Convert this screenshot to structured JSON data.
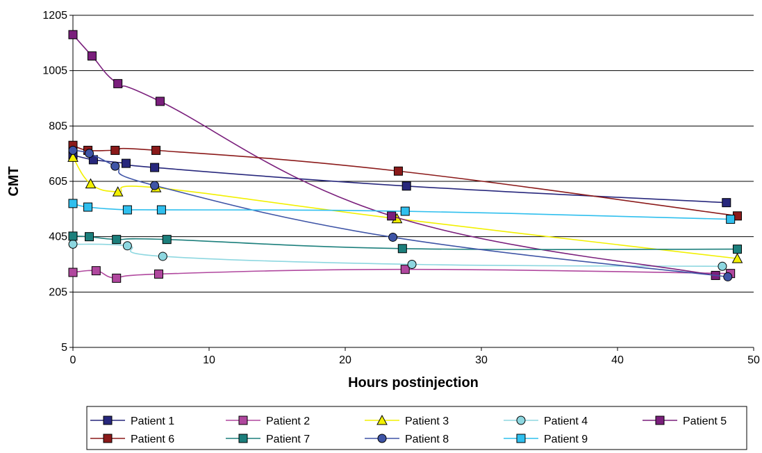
{
  "chart_data": {
    "type": "line",
    "title": "",
    "xlabel": "Hours postinjection",
    "ylabel": "CMT",
    "xlim": [
      0,
      50
    ],
    "ylim": [
      5,
      1205
    ],
    "xticks": [
      0,
      10,
      20,
      30,
      40,
      50
    ],
    "yticks": [
      5,
      205,
      405,
      605,
      805,
      1005,
      1205
    ],
    "grid": "horizontal",
    "legend_position": "bottom",
    "series": [
      {
        "name": "Patient 1",
        "color": "#27277c",
        "marker": "square",
        "x": [
          0,
          1.5,
          3.9,
          6,
          24.5,
          48
        ],
        "y": [
          700,
          683,
          670,
          655,
          588,
          528
        ]
      },
      {
        "name": "Patient 2",
        "color": "#b0479e",
        "marker": "square",
        "x": [
          0,
          1.7,
          3.2,
          6.3,
          24.4,
          48.3
        ],
        "y": [
          276,
          282,
          255,
          270,
          287,
          272
        ]
      },
      {
        "name": "Patient 3",
        "color": "#f2f000",
        "marker": "triangle",
        "x": [
          0,
          1.3,
          3.3,
          6.1,
          23.8,
          48.8
        ],
        "y": [
          692,
          596,
          567,
          582,
          470,
          326
        ]
      },
      {
        "name": "Patient 4",
        "color": "#8dd7e0",
        "marker": "circle",
        "x": [
          0,
          4,
          6.6,
          24.9,
          47.7
        ],
        "y": [
          378,
          372,
          334,
          305,
          298
        ]
      },
      {
        "name": "Patient 5",
        "color": "#7a1f7c",
        "marker": "square",
        "x": [
          0,
          1.4,
          3.3,
          6.4,
          23.4,
          47.2
        ],
        "y": [
          1135,
          1058,
          958,
          894,
          480,
          265
        ]
      },
      {
        "name": "Patient 6",
        "color": "#8b1a1a",
        "marker": "square",
        "x": [
          0,
          1.1,
          3.1,
          6.1,
          23.9,
          48.8
        ],
        "y": [
          735,
          717,
          717,
          717,
          642,
          480
        ]
      },
      {
        "name": "Patient 7",
        "color": "#1c7f7c",
        "marker": "square",
        "x": [
          0,
          1.2,
          3.2,
          6.9,
          24.2,
          48.8
        ],
        "y": [
          407,
          405,
          395,
          395,
          362,
          360
        ]
      },
      {
        "name": "Patient 8",
        "color": "#3e54a6",
        "marker": "circle",
        "x": [
          0,
          1.2,
          3.1,
          6,
          23.5,
          48.1
        ],
        "y": [
          717,
          706,
          660,
          590,
          403,
          260
        ]
      },
      {
        "name": "Patient 9",
        "color": "#2fbfee",
        "marker": "square",
        "x": [
          0,
          1.1,
          4,
          6.5,
          24.4,
          48.3
        ],
        "y": [
          525,
          512,
          502,
          502,
          497,
          468
        ]
      }
    ]
  }
}
